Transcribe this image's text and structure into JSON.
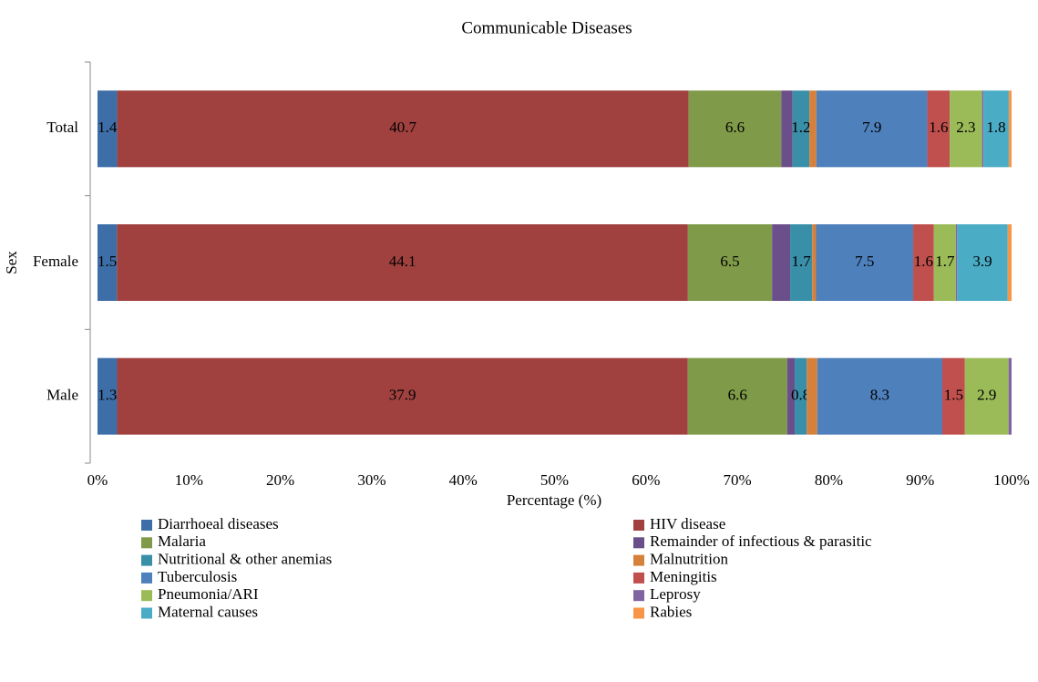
{
  "chart_data": {
    "type": "stacked100_barh",
    "title": "Communicable Diseases",
    "xlabel": "Percentage (%)",
    "ylabel": "Sex",
    "categories": [
      "Total",
      "Female",
      "Male"
    ],
    "xlim": [
      0,
      100
    ],
    "xticks": [
      {
        "value": 0,
        "label": "0%"
      },
      {
        "value": 10,
        "label": "10%"
      },
      {
        "value": 20,
        "label": "20%"
      },
      {
        "value": 30,
        "label": "30%"
      },
      {
        "value": 40,
        "label": "40%"
      },
      {
        "value": 50,
        "label": "50%"
      },
      {
        "value": 60,
        "label": "60%"
      },
      {
        "value": 70,
        "label": "70%"
      },
      {
        "value": 80,
        "label": "80%"
      },
      {
        "value": 90,
        "label": "90%"
      },
      {
        "value": 100,
        "label": "100%"
      }
    ],
    "series": [
      {
        "name": "Diarrhoeal diseases",
        "color": "#3e6ea8",
        "values": [
          1.4,
          1.5,
          1.3
        ],
        "show_labels": true
      },
      {
        "name": "HIV disease",
        "color": "#a0413f",
        "values": [
          40.7,
          44.1,
          37.9
        ],
        "show_labels": true
      },
      {
        "name": "Malaria",
        "color": "#7f9a48",
        "values": [
          6.6,
          6.5,
          6.6
        ],
        "show_labels": true
      },
      {
        "name": "Remainder of infectious & parasitic",
        "color": "#6a4f8a",
        "values": [
          0.8,
          1.4,
          0.5
        ],
        "show_labels": false
      },
      {
        "name": "Nutritional & other anemias",
        "color": "#3a8fa8",
        "values": [
          1.2,
          1.7,
          0.8
        ],
        "show_labels": true
      },
      {
        "name": "Malnutrition",
        "color": "#d5813b",
        "values": [
          0.5,
          0.3,
          0.7
        ],
        "show_labels": false
      },
      {
        "name": "Tuberculosis",
        "color": "#4e80bc",
        "values": [
          7.9,
          7.5,
          8.3
        ],
        "show_labels": true
      },
      {
        "name": "Meningitis",
        "color": "#c0504d",
        "values": [
          1.6,
          1.6,
          1.5
        ],
        "show_labels": true
      },
      {
        "name": "Pneumonia/ARI",
        "color": "#9bbb59",
        "values": [
          2.3,
          1.7,
          2.9
        ],
        "show_labels": true
      },
      {
        "name": "Leprosy",
        "color": "#8064a2",
        "values": [
          0.1,
          0.1,
          0.2
        ],
        "show_labels": false
      },
      {
        "name": "Maternal causes",
        "color": "#4bacc6",
        "values": [
          1.8,
          3.9,
          0
        ],
        "show_labels": true
      },
      {
        "name": "Rabies",
        "color": "#f79646",
        "values": [
          0.2,
          0.3,
          0
        ],
        "show_labels": false
      }
    ]
  }
}
